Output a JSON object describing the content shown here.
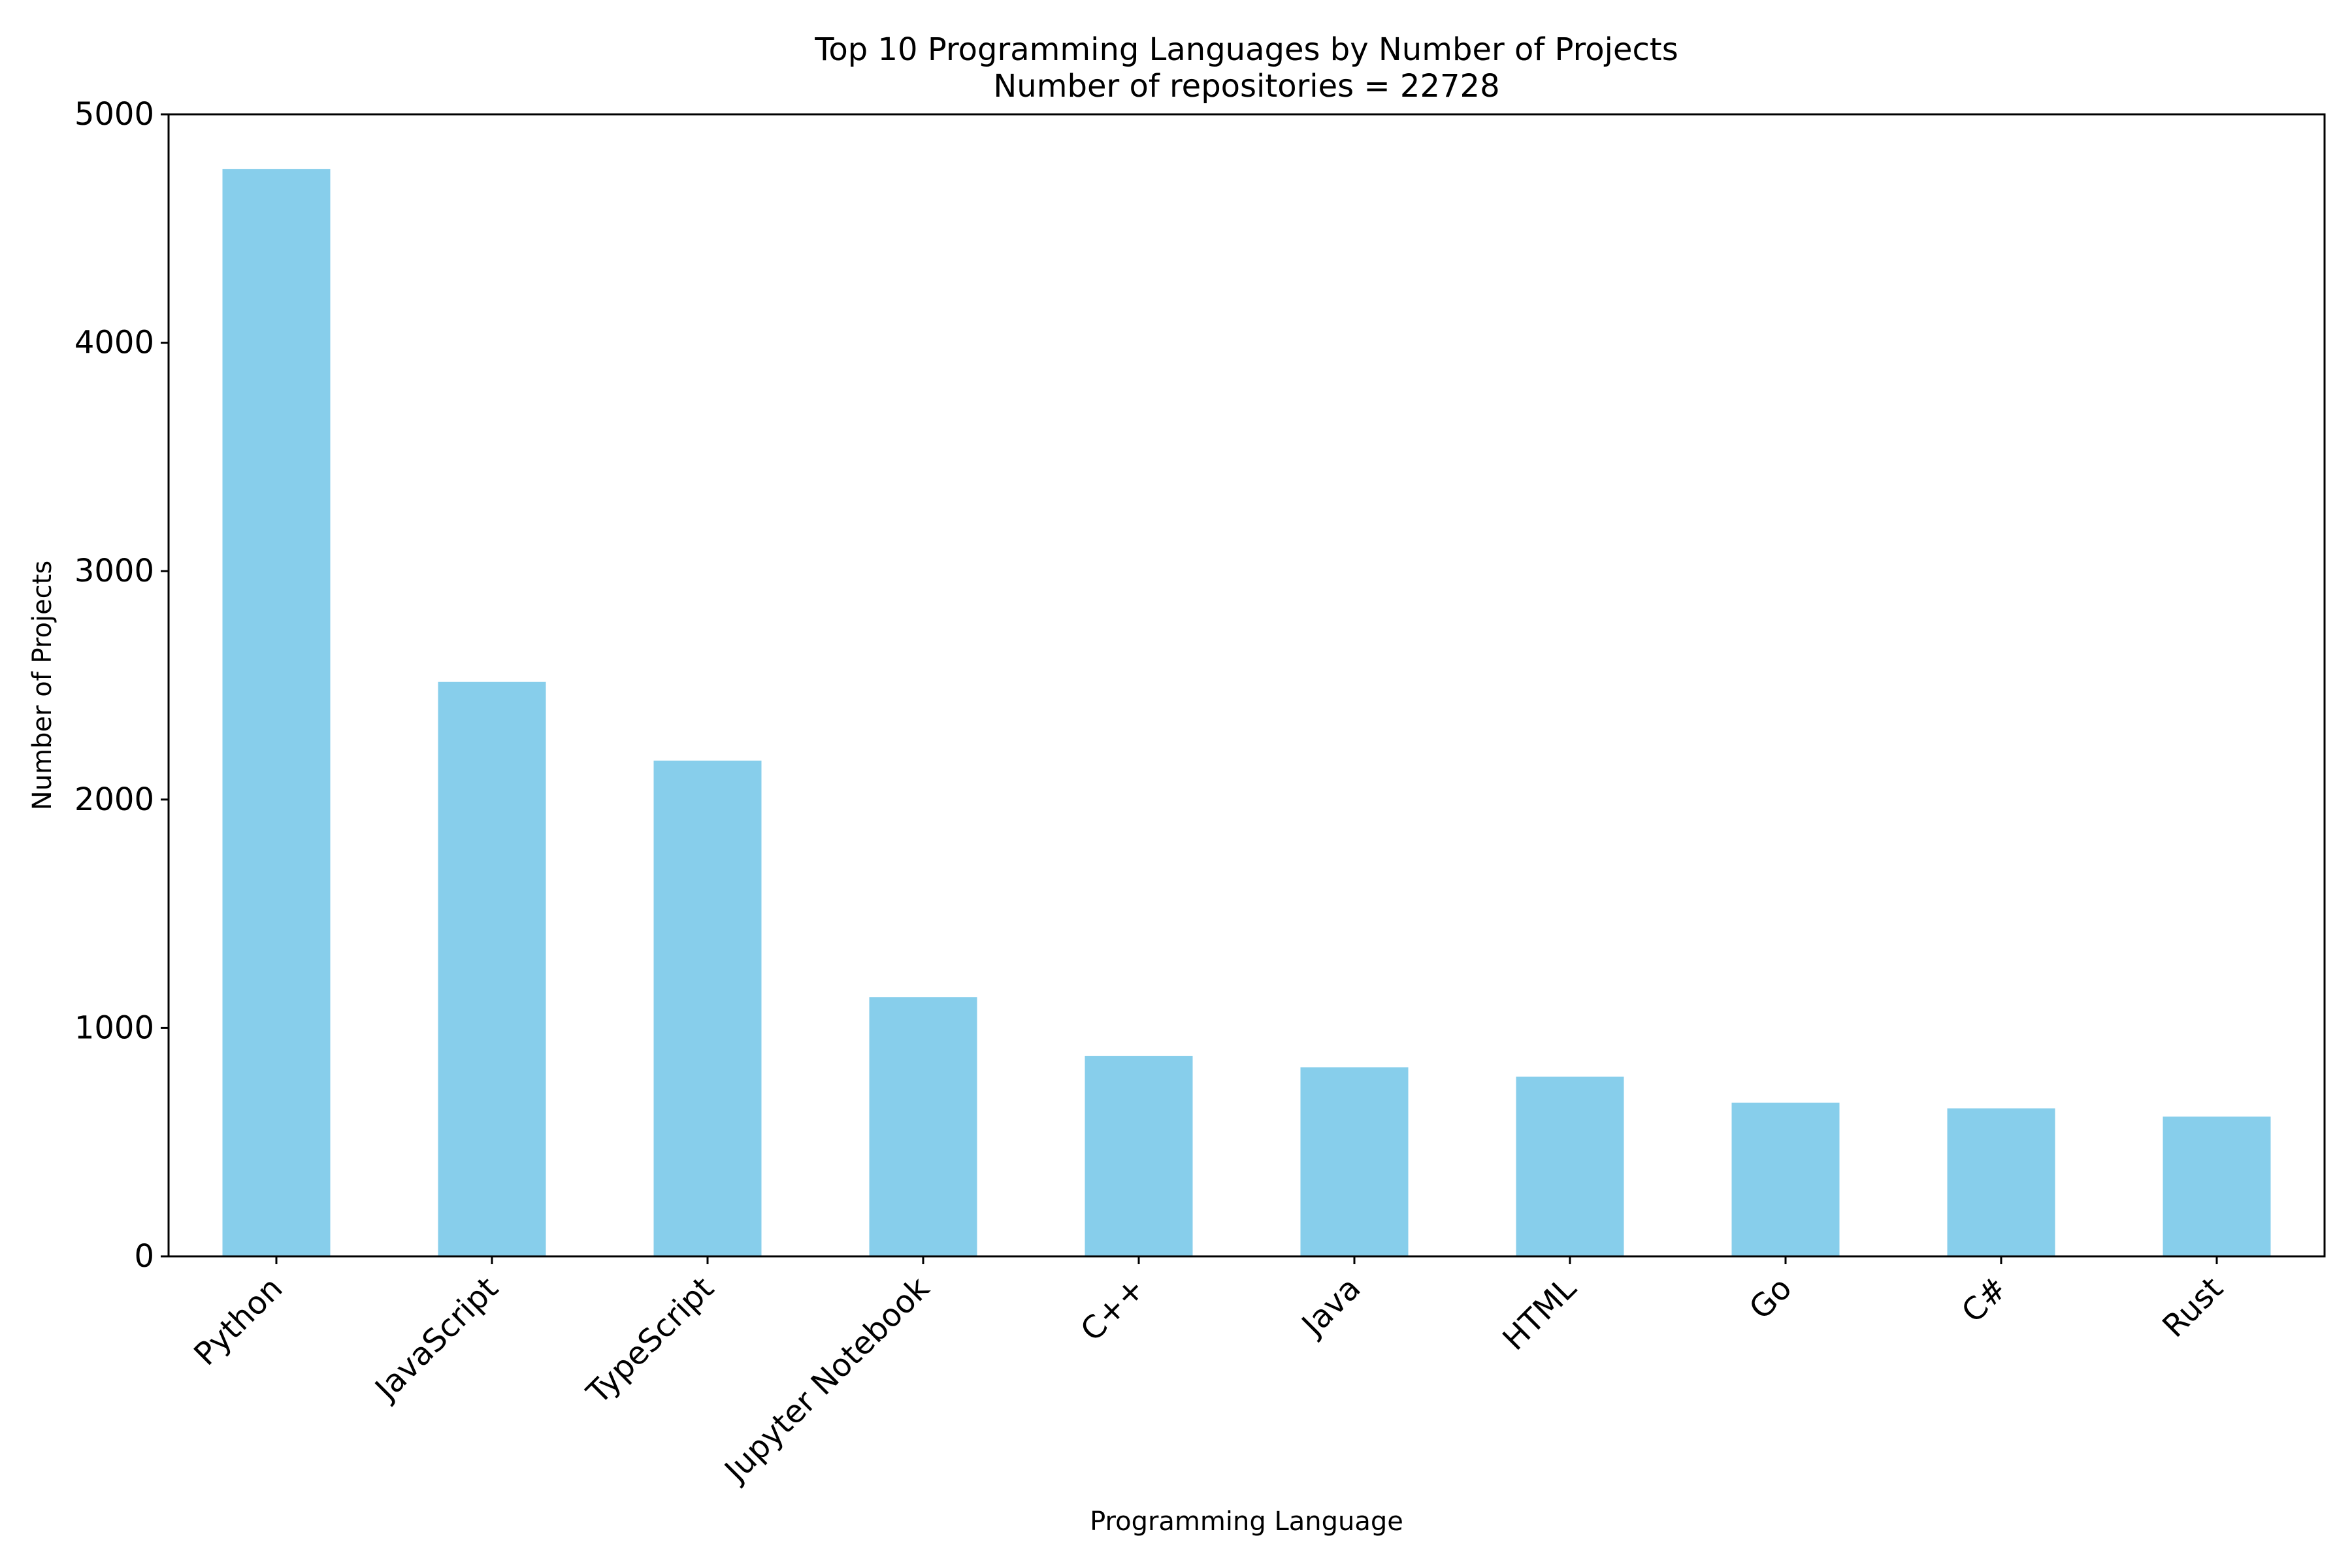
{
  "chart_data": {
    "type": "bar",
    "title": "Top 10 Programming Languages by Number of Projects",
    "subtitle": "Number of repositories = 22728",
    "xlabel": "Programming Language",
    "ylabel": "Number of Projects",
    "categories": [
      "Python",
      "JavaScript",
      "TypeScript",
      "Jupyter Notebook",
      "C++",
      "Java",
      "HTML",
      "Go",
      "C#",
      "Rust"
    ],
    "values": [
      4760,
      2515,
      2170,
      1135,
      878,
      828,
      787,
      673,
      648,
      612
    ],
    "ylim": [
      0,
      5000
    ],
    "yticks": [
      0,
      1000,
      2000,
      3000,
      4000,
      5000
    ],
    "ytick_labels": [
      "0",
      "1000",
      "2000",
      "3000",
      "4000",
      "5000"
    ],
    "bar_color": "#87ceeb",
    "grid": false,
    "legend": "none"
  }
}
